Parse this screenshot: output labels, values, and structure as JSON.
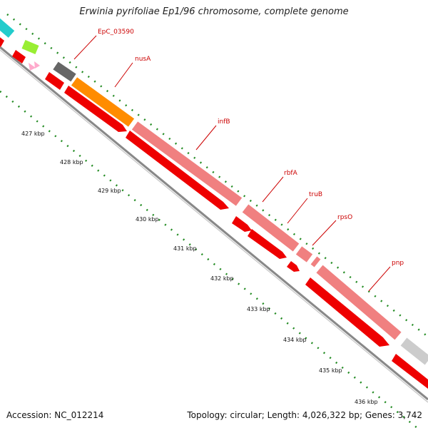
{
  "title": "Erwinia pyrifoliae Ep1/96 chromosome, complete genome",
  "footer": {
    "accession": "Accession: NC_012214",
    "summary": "Topology: circular; Length: 4,026,322 bp; Genes: 3,742"
  },
  "colors": {
    "backbone": "#888888",
    "cds_strand": "#ee0000",
    "gene_pink": "#f08080",
    "gene_orange": "#ff8c00",
    "gene_gray": "#666666",
    "gene_lightgray": "#cccccc",
    "gene_cyan": "#22cccc",
    "gene_lime": "#99ee33",
    "gc_skew_green": "#228b22",
    "label_red": "#cc0000"
  },
  "ticks": [
    "427 kbp",
    "428 kbp",
    "429 kbp",
    "430 kbp",
    "431 kbp",
    "432 kbp",
    "433 kbp",
    "434 kbp",
    "435 kbp",
    "436 kbp"
  ],
  "gene_labels": [
    {
      "name": "EpC_03590"
    },
    {
      "name": "nusA"
    },
    {
      "name": "infB"
    },
    {
      "name": "rbfA"
    },
    {
      "name": "truB"
    },
    {
      "name": "rpsO"
    },
    {
      "name": "pnp"
    }
  ]
}
